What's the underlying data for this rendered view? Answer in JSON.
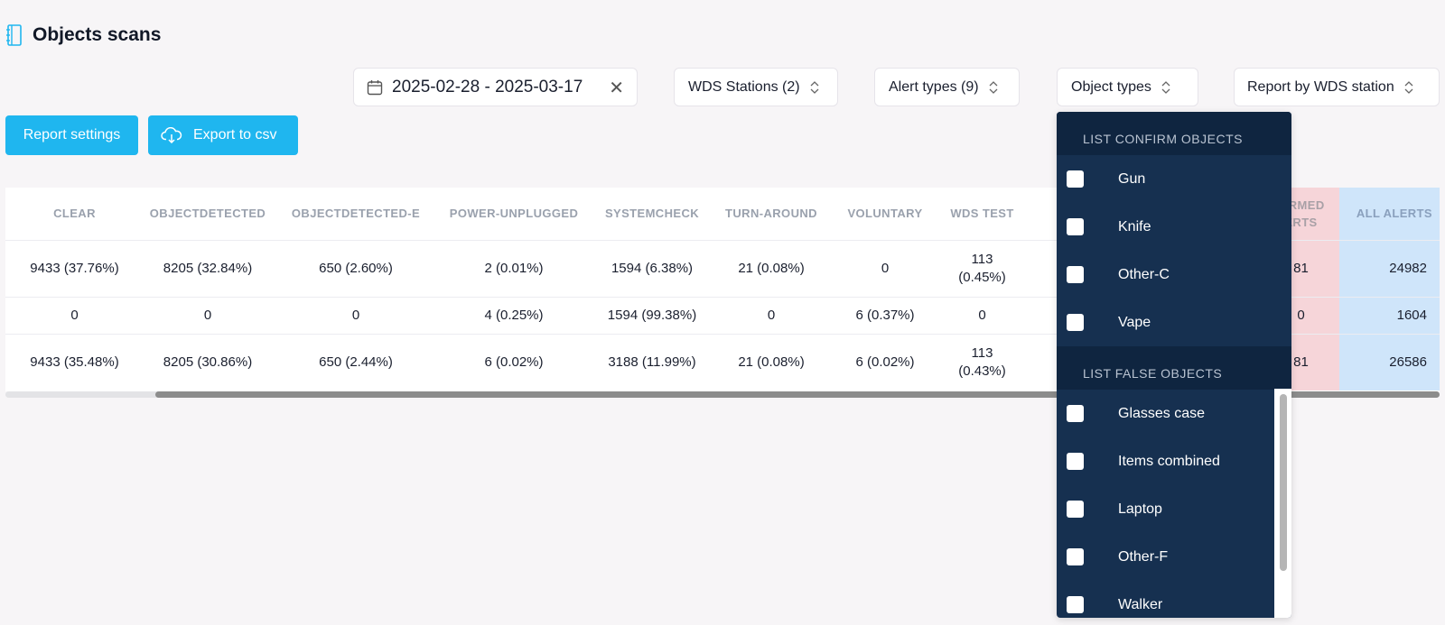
{
  "page": {
    "title": "Objects scans"
  },
  "filters": {
    "date_range": "2025-02-28 - 2025-03-17",
    "stations": "WDS Stations (2)",
    "alert_types": "Alert types (9)",
    "object_types": "Object types",
    "report_by": "Report by WDS station"
  },
  "buttons": {
    "report_settings": "Report settings",
    "export_csv": "Export to csv"
  },
  "table": {
    "headers": [
      "CLEAR",
      "OBJECTDETECTED",
      "OBJECTDETECTED-E",
      "POWER-UNPLUGGED",
      "SYSTEMCHECK",
      "TURN-AROUND",
      "VOLUNTARY",
      "WDS TEST",
      "",
      "FIRMED ERTS",
      "ALL ALERTS"
    ],
    "rows": [
      [
        "9433 (37.76%)",
        "8205 (32.84%)",
        "650 (2.60%)",
        "2 (0.01%)",
        "1594 (6.38%)",
        "21 (0.08%)",
        "0",
        "113 (0.45%)",
        "",
        "81",
        "24982"
      ],
      [
        "0",
        "0",
        "0",
        "4 (0.25%)",
        "1594 (99.38%)",
        "0",
        "6 (0.37%)",
        "0",
        "",
        "0",
        "1604"
      ],
      [
        "9433 (35.48%)",
        "8205 (30.86%)",
        "650 (2.44%)",
        "6 (0.02%)",
        "3188 (11.99%)",
        "21 (0.08%)",
        "6 (0.02%)",
        "113 (0.43%)",
        "",
        "81",
        "26586"
      ]
    ]
  },
  "dropdown": {
    "confirm_header": "LIST CONFIRM OBJECTS",
    "confirm_items": [
      "Gun",
      "Knife",
      "Other-C",
      "Vape"
    ],
    "false_header": "LIST FALSE OBJECTS",
    "false_items": [
      "Glasses case",
      "Items combined",
      "Laptop",
      "Other-F",
      "Walker"
    ]
  },
  "colors": {
    "accent": "#1fb6ef",
    "dropdown_bg": "#163050",
    "confirmed_col": "#f6d5d9",
    "all_col": "#cfe5fa"
  }
}
